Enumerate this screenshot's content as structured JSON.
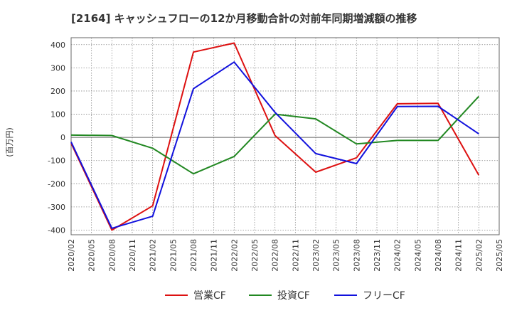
{
  "chart_data": {
    "type": "line",
    "title": "[2164]  キャッシュフローの12か月移動合計の対前年同期増減額の推移",
    "ylabel": "(百万円)",
    "xlabel": "",
    "ylim": [
      -420,
      430
    ],
    "yticks": [
      -400,
      -300,
      -200,
      -100,
      0,
      100,
      200,
      300,
      400
    ],
    "xticks": [
      "2020/02",
      "2020/05",
      "2020/08",
      "2020/11",
      "2021/02",
      "2021/05",
      "2021/08",
      "2021/11",
      "2022/02",
      "2022/05",
      "2022/08",
      "2022/11",
      "2023/02",
      "2023/05",
      "2023/08",
      "2023/11",
      "2024/02",
      "2024/05",
      "2024/08",
      "2024/11",
      "2025/02",
      "2025/05"
    ],
    "grid": true,
    "legend_position": "bottom",
    "series": [
      {
        "name": "営業CF",
        "color": "#dd1111",
        "x": [
          "2020/02",
          "2020/08",
          "2021/02",
          "2021/08",
          "2022/02",
          "2022/08",
          "2023/02",
          "2023/08",
          "2024/02",
          "2024/08",
          "2025/02"
        ],
        "values": [
          -25,
          -400,
          -295,
          368,
          407,
          8,
          -150,
          -88,
          145,
          147,
          -163
        ]
      },
      {
        "name": "投資CF",
        "color": "#228822",
        "x": [
          "2020/02",
          "2020/08",
          "2021/02",
          "2021/08",
          "2022/02",
          "2022/08",
          "2023/02",
          "2023/08",
          "2024/02",
          "2024/08",
          "2025/02"
        ],
        "values": [
          10,
          8,
          -47,
          -157,
          -82,
          100,
          80,
          -28,
          -13,
          -13,
          177
        ]
      },
      {
        "name": "フリーCF",
        "color": "#1111dd",
        "x": [
          "2020/02",
          "2020/08",
          "2021/02",
          "2021/08",
          "2022/02",
          "2022/08",
          "2023/02",
          "2023/08",
          "2024/02",
          "2024/08",
          "2025/02"
        ],
        "values": [
          -20,
          -392,
          -340,
          210,
          325,
          108,
          -70,
          -113,
          133,
          134,
          15
        ]
      }
    ]
  }
}
